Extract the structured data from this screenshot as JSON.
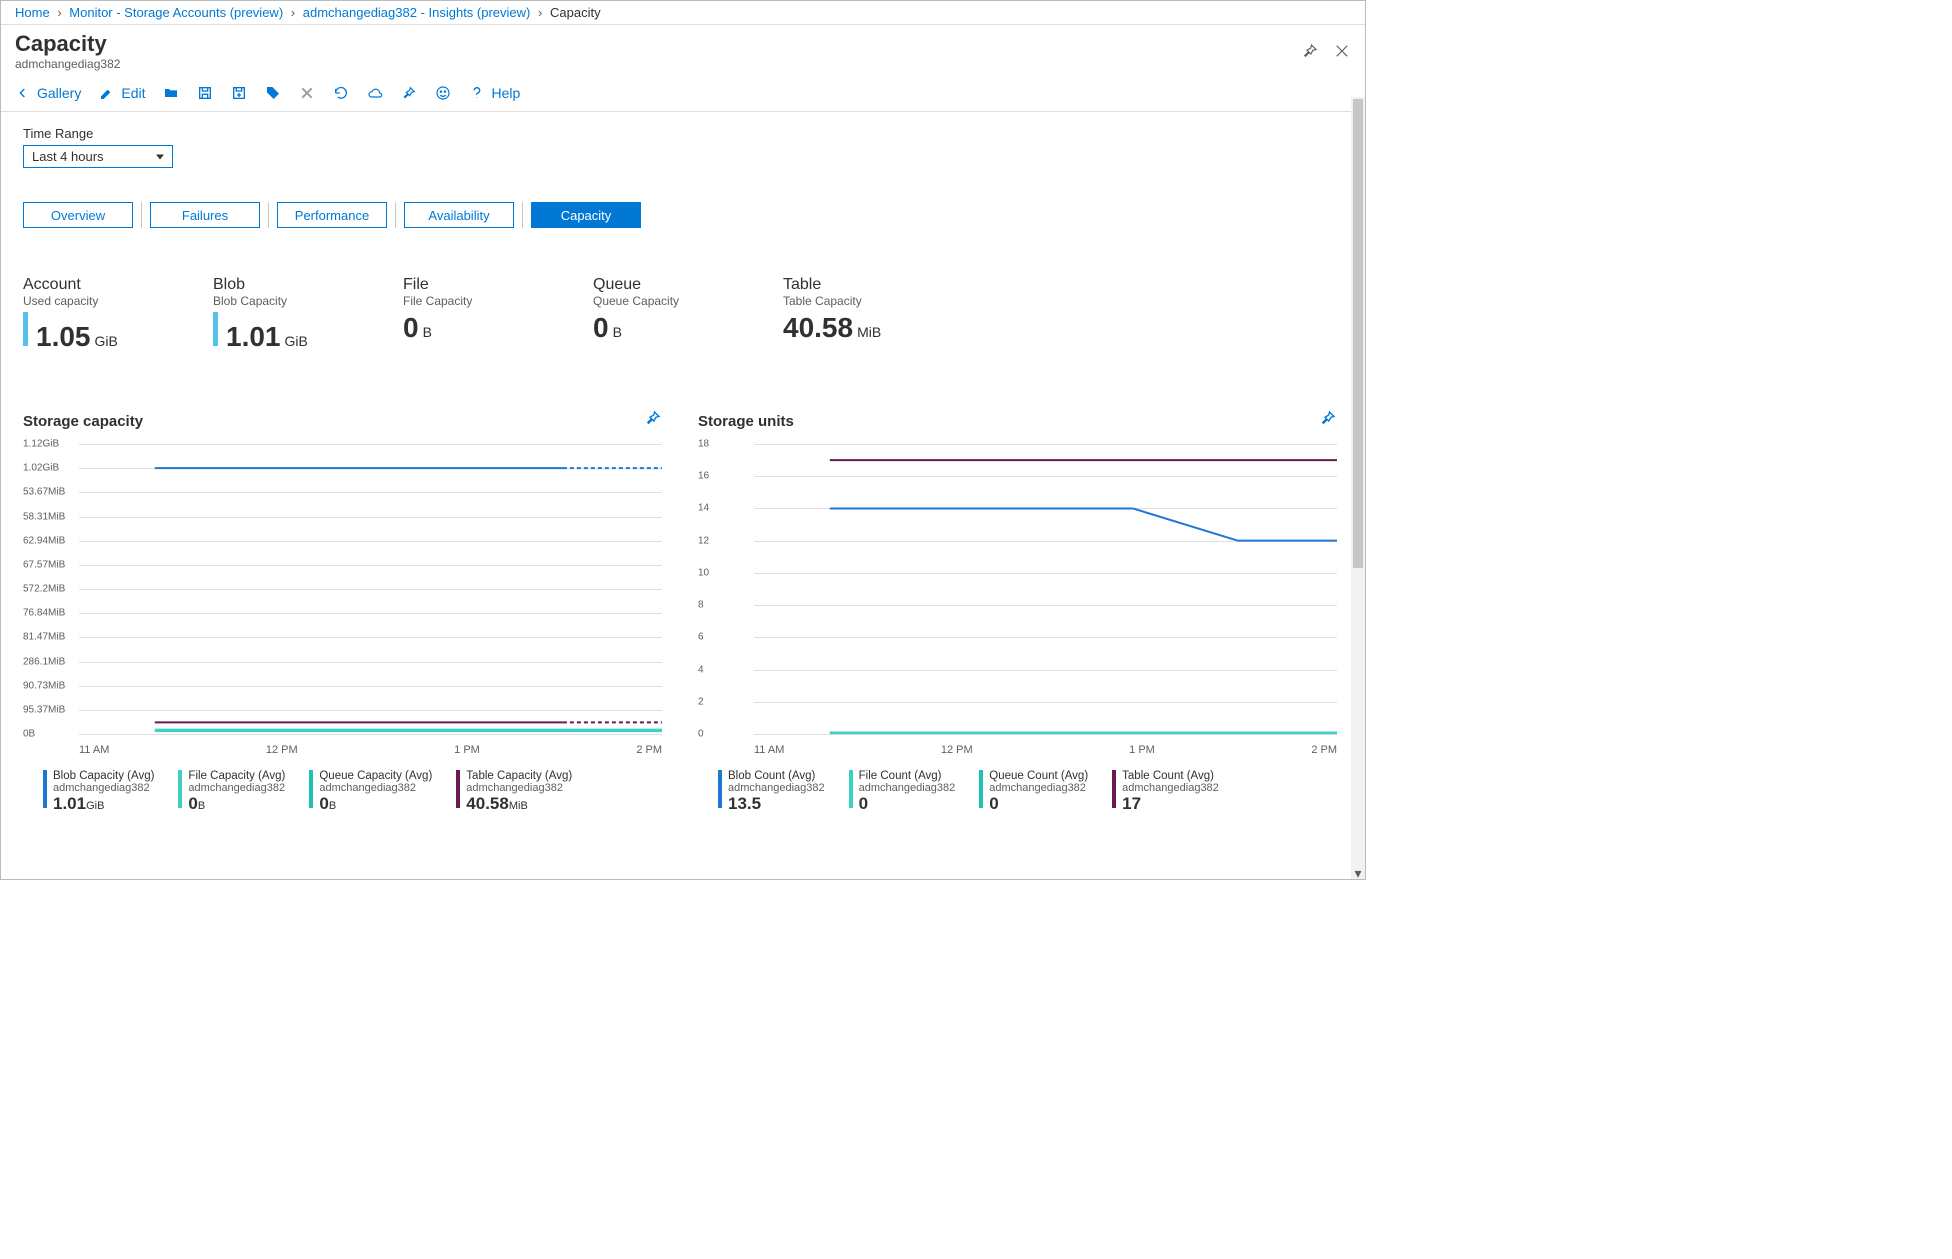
{
  "breadcrumb": {
    "home": "Home",
    "monitor": "Monitor - Storage Accounts (preview)",
    "insights": "admchangediag382 - Insights (preview)",
    "current": "Capacity"
  },
  "header": {
    "title": "Capacity",
    "subtitle": "admchangediag382"
  },
  "toolbar": {
    "gallery": "Gallery",
    "edit": "Edit",
    "hlp": "Help"
  },
  "time_range": {
    "label": "Time Range",
    "value": "Last 4 hours"
  },
  "tabs": {
    "overview": "Overview",
    "failures": "Failures",
    "performance": "Performance",
    "availability": "Availability",
    "capacity": "Capacity"
  },
  "metrics": {
    "account": {
      "title": "Account",
      "sub": "Used capacity",
      "val": "1.05",
      "unit": "GiB",
      "bar_color": "#55c1e8"
    },
    "blob": {
      "title": "Blob",
      "sub": "Blob Capacity",
      "val": "1.01",
      "unit": "GiB",
      "bar_color": "#55c1e8"
    },
    "file": {
      "title": "File",
      "sub": "File Capacity",
      "val": "0",
      "unit": "B",
      "bar_color": null
    },
    "queue": {
      "title": "Queue",
      "sub": "Queue Capacity",
      "val": "0",
      "unit": "B",
      "bar_color": null
    },
    "table": {
      "title": "Table",
      "sub": "Table Capacity",
      "val": "40.58",
      "unit": "MiB",
      "bar_color": null
    }
  },
  "chart_capacity": {
    "title": "Storage capacity",
    "yticks": [
      "1.12GiB",
      "1.02GiB",
      "53.67MiB",
      "58.31MiB",
      "62.94MiB",
      "67.57MiB",
      "572.2MiB",
      "76.84MiB",
      "81.47MiB",
      "286.1MiB",
      "90.73MiB",
      "95.37MiB",
      "0B"
    ],
    "xticks": [
      "11 AM",
      "12 PM",
      "1 PM",
      "2 PM"
    ],
    "grid_color": "#e1dfdd",
    "series": {
      "blob": {
        "color": "#1f77d4",
        "y_frac": 0.083,
        "dash_from_frac": 0.83
      },
      "file": {
        "color": "#3dd0c7",
        "y_frac": 0.985
      },
      "queue": {
        "color": "#3dd0c7",
        "y_frac": 0.99
      },
      "table": {
        "color": "#6a1b4d",
        "y_frac": 0.96,
        "dash_from_frac": 0.83
      }
    },
    "legend": [
      {
        "label": "Blob Capacity (Avg)",
        "sub": "admchangediag382",
        "val": "1.01",
        "unit": "GiB",
        "color": "#1f77d4"
      },
      {
        "label": "File Capacity (Avg)",
        "sub": "admchangediag382",
        "val": "0",
        "unit": "B",
        "color": "#3dd0c7"
      },
      {
        "label": "Queue Capacity (Avg)",
        "sub": "admchangediag382",
        "val": "0",
        "unit": "B",
        "color": "#1fc1b4"
      },
      {
        "label": "Table Capacity (Avg)",
        "sub": "admchangediag382",
        "val": "40.58",
        "unit": "MiB",
        "color": "#6a1b4d"
      }
    ]
  },
  "chart_units": {
    "title": "Storage units",
    "yticks": [
      "18",
      "16",
      "14",
      "12",
      "10",
      "8",
      "6",
      "4",
      "2",
      "0"
    ],
    "xticks": [
      "11 AM",
      "12 PM",
      "1 PM",
      "2 PM"
    ],
    "grid_color": "#e1dfdd",
    "series": {
      "blob": {
        "color": "#1f77d4",
        "points": [
          {
            "x": 0.13,
            "y": 14
          },
          {
            "x": 0.65,
            "y": 14
          },
          {
            "x": 0.83,
            "y": 12
          },
          {
            "x": 1.0,
            "y": 12
          }
        ],
        "ymax": 18,
        "dash_from_frac": 0.85
      },
      "file": {
        "color": "#3dd0c7",
        "y_frac": 0.995
      },
      "queue": {
        "color": "#3dd0c7",
        "y_frac": 0.997
      },
      "table": {
        "color": "#6a1b4d",
        "points": [
          {
            "x": 0.13,
            "y": 17
          },
          {
            "x": 1.0,
            "y": 17
          }
        ],
        "ymax": 18,
        "dash_from_frac": 0.85
      }
    },
    "legend": [
      {
        "label": "Blob Count (Avg)",
        "sub": "admchangediag382",
        "val": "13.5",
        "unit": "",
        "color": "#1f77d4"
      },
      {
        "label": "File Count (Avg)",
        "sub": "admchangediag382",
        "val": "0",
        "unit": "",
        "color": "#3dd0c7"
      },
      {
        "label": "Queue Count (Avg)",
        "sub": "admchangediag382",
        "val": "0",
        "unit": "",
        "color": "#1fc1b4"
      },
      {
        "label": "Table Count (Avg)",
        "sub": "admchangediag382",
        "val": "17",
        "unit": "",
        "color": "#6a1b4d"
      }
    ]
  },
  "colors": {
    "primary": "#0078d4"
  }
}
